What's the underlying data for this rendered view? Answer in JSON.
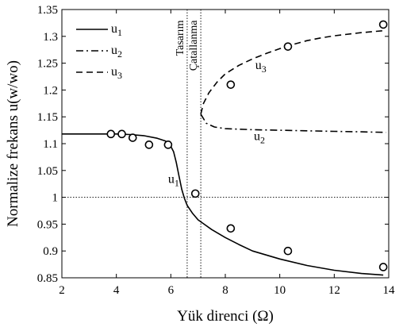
{
  "chart_data": {
    "type": "line",
    "xlabel": "Yük direnci (Ω)",
    "ylabel": "Normalize frekans u(w/wo)",
    "xlim": [
      2,
      14
    ],
    "ylim": [
      0.85,
      1.35
    ],
    "x_ticks": [
      "2",
      "4",
      "6",
      "8",
      "10",
      "12",
      "14"
    ],
    "y_ticks": [
      "0.85",
      "0.9",
      "0.95",
      "1",
      "1.05",
      "1.1",
      "1.15",
      "1.2",
      "1.25",
      "1.3",
      "1.35"
    ],
    "grid": false,
    "legend_position": "top-left",
    "series": [
      {
        "name": "u1",
        "style": "solid",
        "x": [
          2,
          3,
          4,
          4.5,
          5,
          5.5,
          5.8,
          6,
          6.1,
          6.2,
          6.3,
          6.4,
          6.5,
          6.6,
          6.8,
          7,
          7.5,
          8,
          8.5,
          9,
          10,
          11,
          12,
          13,
          13.8
        ],
        "y": [
          1.118,
          1.118,
          1.118,
          1.117,
          1.115,
          1.11,
          1.105,
          1.095,
          1.085,
          1.065,
          1.04,
          1.015,
          0.998,
          0.985,
          0.97,
          0.958,
          0.94,
          0.925,
          0.912,
          0.9,
          0.885,
          0.873,
          0.864,
          0.858,
          0.855
        ]
      },
      {
        "name": "u2",
        "style": "dashdot",
        "x": [
          7.1,
          7.3,
          7.6,
          8,
          9,
          10,
          11,
          12,
          13,
          13.9
        ],
        "y": [
          1.155,
          1.138,
          1.131,
          1.128,
          1.126,
          1.125,
          1.124,
          1.123,
          1.122,
          1.121
        ]
      },
      {
        "name": "u3",
        "style": "dashed",
        "x": [
          7.1,
          7.2,
          7.4,
          7.7,
          8,
          8.5,
          9,
          9.5,
          10,
          10.5,
          11,
          11.5,
          12,
          13,
          13.9
        ],
        "y": [
          1.155,
          1.175,
          1.195,
          1.215,
          1.23,
          1.246,
          1.258,
          1.268,
          1.277,
          1.285,
          1.292,
          1.297,
          1.301,
          1.307,
          1.311
        ]
      }
    ],
    "markers": {
      "x": [
        3.8,
        4.2,
        4.6,
        5.2,
        5.9,
        6.9,
        8.2,
        8.2,
        10.3,
        10.3,
        13.8,
        13.8
      ],
      "y": [
        1.118,
        1.118,
        1.111,
        1.098,
        1.098,
        1.007,
        1.21,
        0.942,
        1.281,
        0.9,
        1.322,
        0.87
      ]
    },
    "reference_lines": {
      "vertical_x": [
        6.6,
        7.1
      ],
      "horizontal_y": [
        1
      ]
    },
    "annotations": [
      {
        "text": "Tasarım",
        "x": 6.45,
        "y": 1.33,
        "rotate": -90
      },
      {
        "text": "Çatallanma",
        "x": 6.95,
        "y": 1.33,
        "rotate": -90
      },
      {
        "text": "u1",
        "x": 5.9,
        "y": 1.027
      },
      {
        "text": "u2",
        "x": 9.05,
        "y": 1.107
      },
      {
        "text": "u3",
        "x": 9.1,
        "y": 1.239
      }
    ],
    "legend": [
      {
        "label": "u1",
        "style": "solid"
      },
      {
        "label": "u2",
        "style": "dashdot"
      },
      {
        "label": "u3",
        "style": "dashed"
      }
    ]
  }
}
